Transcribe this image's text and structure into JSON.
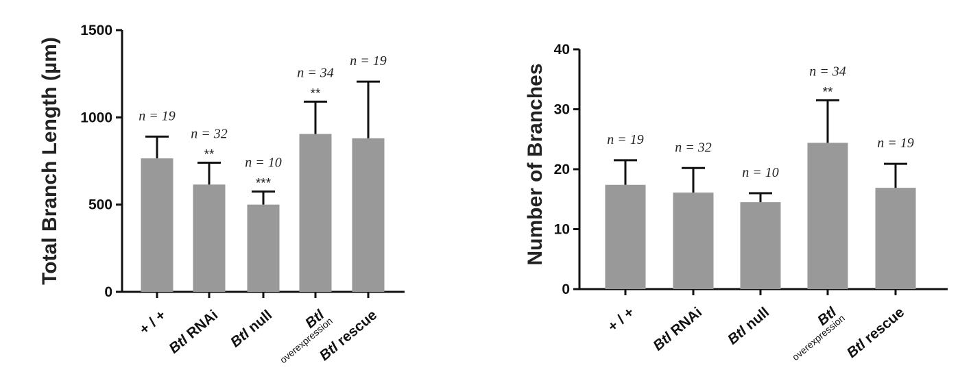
{
  "chart_data": [
    {
      "type": "bar",
      "ylabel": "Total Branch Length (µm)",
      "ylim": [
        0,
        1500
      ],
      "yticks": [
        "0",
        "500",
        "1000",
        "1500"
      ],
      "categories": [
        {
          "italic": "",
          "main": "+ / +",
          "sub": ""
        },
        {
          "italic": "Btl",
          "main": " RNAi",
          "sub": ""
        },
        {
          "italic": "Btl",
          "main": " null",
          "sub": ""
        },
        {
          "italic": "Btl",
          "main": "",
          "sub": "overexpression"
        },
        {
          "italic": "Btl",
          "main": " rescue",
          "sub": ""
        }
      ],
      "values": [
        765,
        615,
        500,
        905,
        880
      ],
      "errors": [
        125,
        125,
        75,
        185,
        325
      ],
      "n_labels": [
        "n = 19",
        "n = 32",
        "n = 10",
        "n = 34",
        "n = 19"
      ],
      "significance": [
        "",
        "**",
        "***",
        "**",
        ""
      ],
      "bar_color": "#999999"
    },
    {
      "type": "bar",
      "ylabel": "Number of Branches",
      "ylim": [
        0,
        40
      ],
      "yticks": [
        "0",
        "10",
        "20",
        "30",
        "40"
      ],
      "categories": [
        {
          "italic": "",
          "main": "+ / +",
          "sub": ""
        },
        {
          "italic": "Btl",
          "main": " RNAi",
          "sub": ""
        },
        {
          "italic": "Btl",
          "main": " null",
          "sub": ""
        },
        {
          "italic": "Btl",
          "main": "",
          "sub": "overexpression"
        },
        {
          "italic": "Btl",
          "main": " rescue",
          "sub": ""
        }
      ],
      "values": [
        17.4,
        16.1,
        14.5,
        24.4,
        16.9
      ],
      "errors": [
        4.1,
        4.1,
        1.5,
        7.1,
        4.0
      ],
      "n_labels": [
        "n = 19",
        "n = 32",
        "n = 10",
        "n = 34",
        "n = 19"
      ],
      "significance": [
        "",
        "",
        "",
        "**",
        ""
      ],
      "bar_color": "#999999"
    }
  ]
}
